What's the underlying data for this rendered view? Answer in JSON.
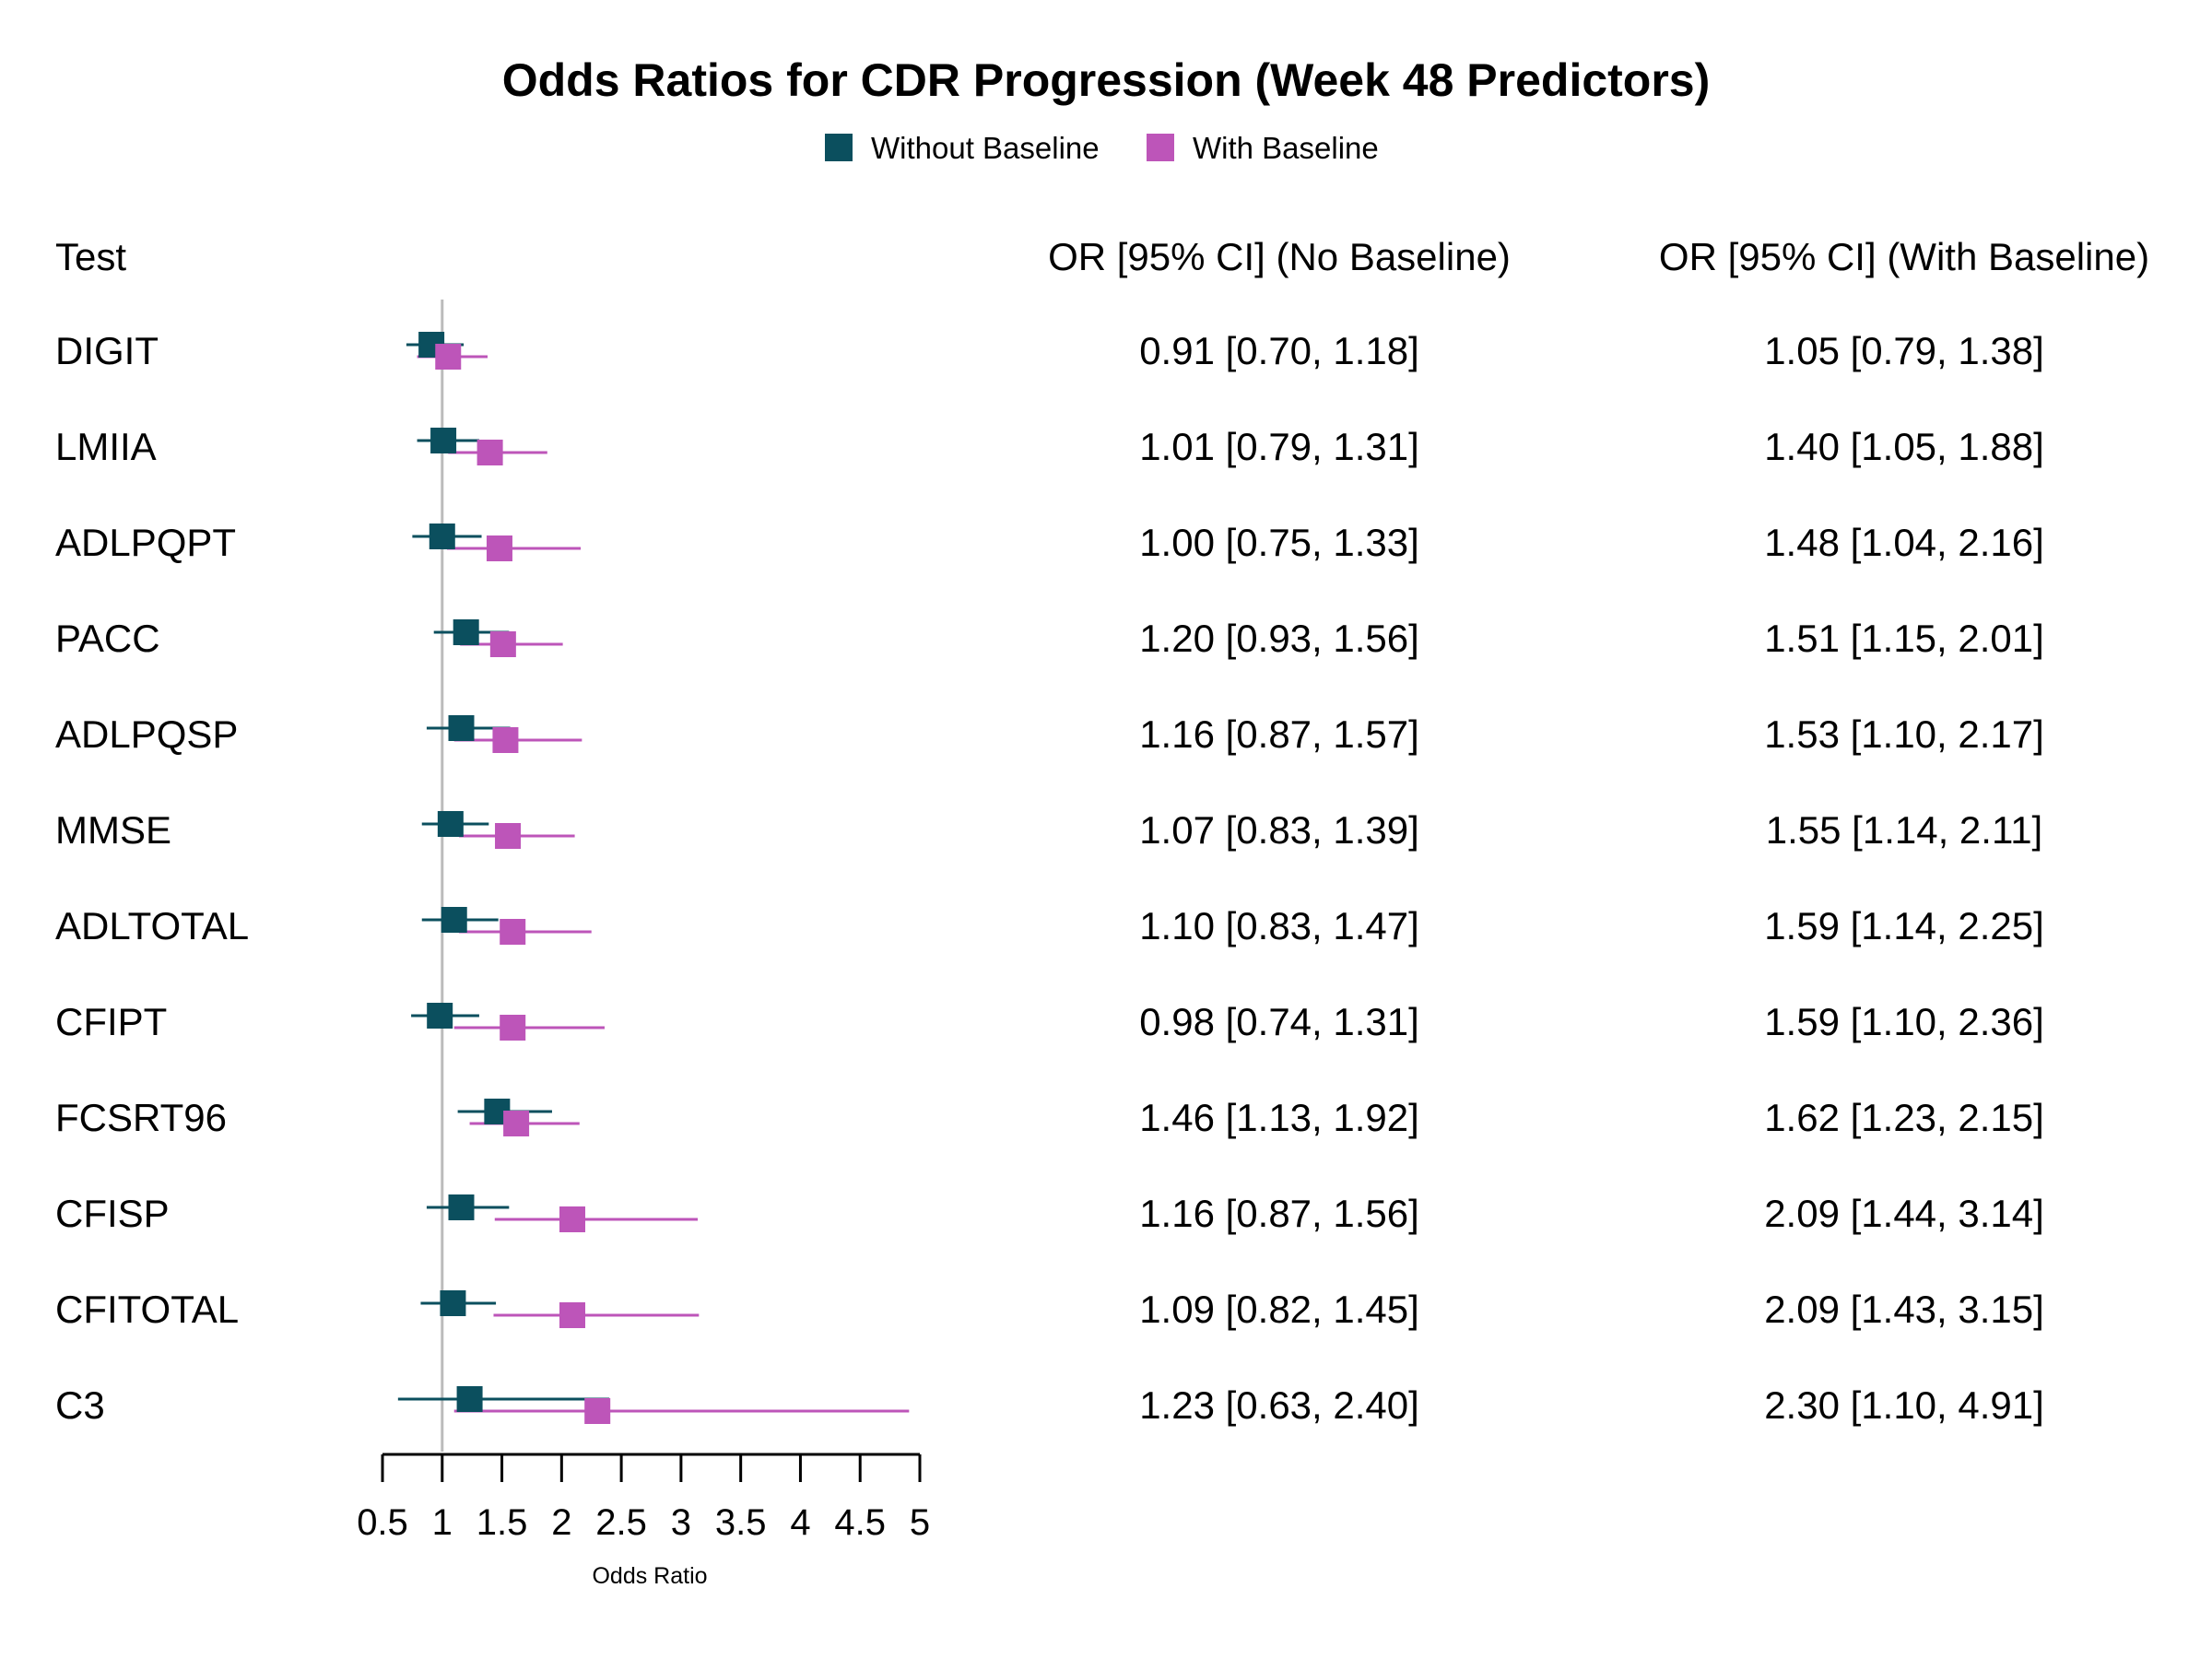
{
  "colors": {
    "without": "#0b4f5e",
    "with": "#bd55b9",
    "ref_line": "#bbbbbb",
    "axis": "#000000"
  },
  "chart_data": {
    "type": "forest",
    "title": "Odds Ratios for CDR Progression (Week 48 Predictors)",
    "xlabel": "Odds Ratio",
    "xlim": [
      0.5,
      5
    ],
    "xticks": [
      0.5,
      1,
      1.5,
      2,
      2.5,
      3,
      3.5,
      4,
      4.5,
      5
    ],
    "tick_labels": [
      "0.5",
      "1",
      "1.5",
      "2",
      "2.5",
      "3",
      "3.5",
      "4",
      "4.5",
      "5"
    ],
    "reference_line": 1,
    "legend": {
      "position": "top-center",
      "entries": [
        "Without Baseline",
        "With Baseline"
      ]
    },
    "columns": {
      "test": "Test",
      "no_baseline": "OR [95% CI] (No Baseline)",
      "with_baseline": "OR [95% CI] (With Baseline)"
    },
    "rows": [
      {
        "test": "DIGIT",
        "no": {
          "or": 0.91,
          "lo": 0.7,
          "hi": 1.18
        },
        "with": {
          "or": 1.05,
          "lo": 0.79,
          "hi": 1.38
        },
        "no_text": "0.91 [0.70, 1.18]",
        "with_text": "1.05 [0.79, 1.38]"
      },
      {
        "test": "LMIIA",
        "no": {
          "or": 1.01,
          "lo": 0.79,
          "hi": 1.31
        },
        "with": {
          "or": 1.4,
          "lo": 1.05,
          "hi": 1.88
        },
        "no_text": "1.01 [0.79, 1.31]",
        "with_text": "1.40 [1.05, 1.88]"
      },
      {
        "test": "ADLPQPT",
        "no": {
          "or": 1.0,
          "lo": 0.75,
          "hi": 1.33
        },
        "with": {
          "or": 1.48,
          "lo": 1.04,
          "hi": 2.16
        },
        "no_text": "1.00 [0.75, 1.33]",
        "with_text": "1.48 [1.04, 2.16]"
      },
      {
        "test": "PACC",
        "no": {
          "or": 1.2,
          "lo": 0.93,
          "hi": 1.56
        },
        "with": {
          "or": 1.51,
          "lo": 1.15,
          "hi": 2.01
        },
        "no_text": "1.20 [0.93, 1.56]",
        "with_text": "1.51 [1.15, 2.01]"
      },
      {
        "test": "ADLPQSP",
        "no": {
          "or": 1.16,
          "lo": 0.87,
          "hi": 1.57
        },
        "with": {
          "or": 1.53,
          "lo": 1.1,
          "hi": 2.17
        },
        "no_text": "1.16 [0.87, 1.57]",
        "with_text": "1.53 [1.10, 2.17]"
      },
      {
        "test": "MMSE",
        "no": {
          "or": 1.07,
          "lo": 0.83,
          "hi": 1.39
        },
        "with": {
          "or": 1.55,
          "lo": 1.14,
          "hi": 2.11
        },
        "no_text": "1.07 [0.83, 1.39]",
        "with_text": "1.55 [1.14, 2.11]"
      },
      {
        "test": "ADLTOTAL",
        "no": {
          "or": 1.1,
          "lo": 0.83,
          "hi": 1.47
        },
        "with": {
          "or": 1.59,
          "lo": 1.14,
          "hi": 2.25
        },
        "no_text": "1.10 [0.83, 1.47]",
        "with_text": "1.59 [1.14, 2.25]"
      },
      {
        "test": "CFIPT",
        "no": {
          "or": 0.98,
          "lo": 0.74,
          "hi": 1.31
        },
        "with": {
          "or": 1.59,
          "lo": 1.1,
          "hi": 2.36
        },
        "no_text": "0.98 [0.74, 1.31]",
        "with_text": "1.59 [1.10, 2.36]"
      },
      {
        "test": "FCSRT96",
        "no": {
          "or": 1.46,
          "lo": 1.13,
          "hi": 1.92
        },
        "with": {
          "or": 1.62,
          "lo": 1.23,
          "hi": 2.15
        },
        "no_text": "1.46 [1.13, 1.92]",
        "with_text": "1.62 [1.23, 2.15]"
      },
      {
        "test": "CFISP",
        "no": {
          "or": 1.16,
          "lo": 0.87,
          "hi": 1.56
        },
        "with": {
          "or": 2.09,
          "lo": 1.44,
          "hi": 3.14
        },
        "no_text": "1.16 [0.87, 1.56]",
        "with_text": "2.09 [1.44, 3.14]"
      },
      {
        "test": "CFITOTAL",
        "no": {
          "or": 1.09,
          "lo": 0.82,
          "hi": 1.45
        },
        "with": {
          "or": 2.09,
          "lo": 1.43,
          "hi": 3.15
        },
        "no_text": "1.09 [0.82, 1.45]",
        "with_text": "2.09 [1.43, 3.15]"
      },
      {
        "test": "C3",
        "no": {
          "or": 1.23,
          "lo": 0.63,
          "hi": 2.4
        },
        "with": {
          "or": 2.3,
          "lo": 1.1,
          "hi": 4.91
        },
        "no_text": "1.23 [0.63, 2.40]",
        "with_text": "2.30 [1.10, 4.91]"
      }
    ]
  }
}
